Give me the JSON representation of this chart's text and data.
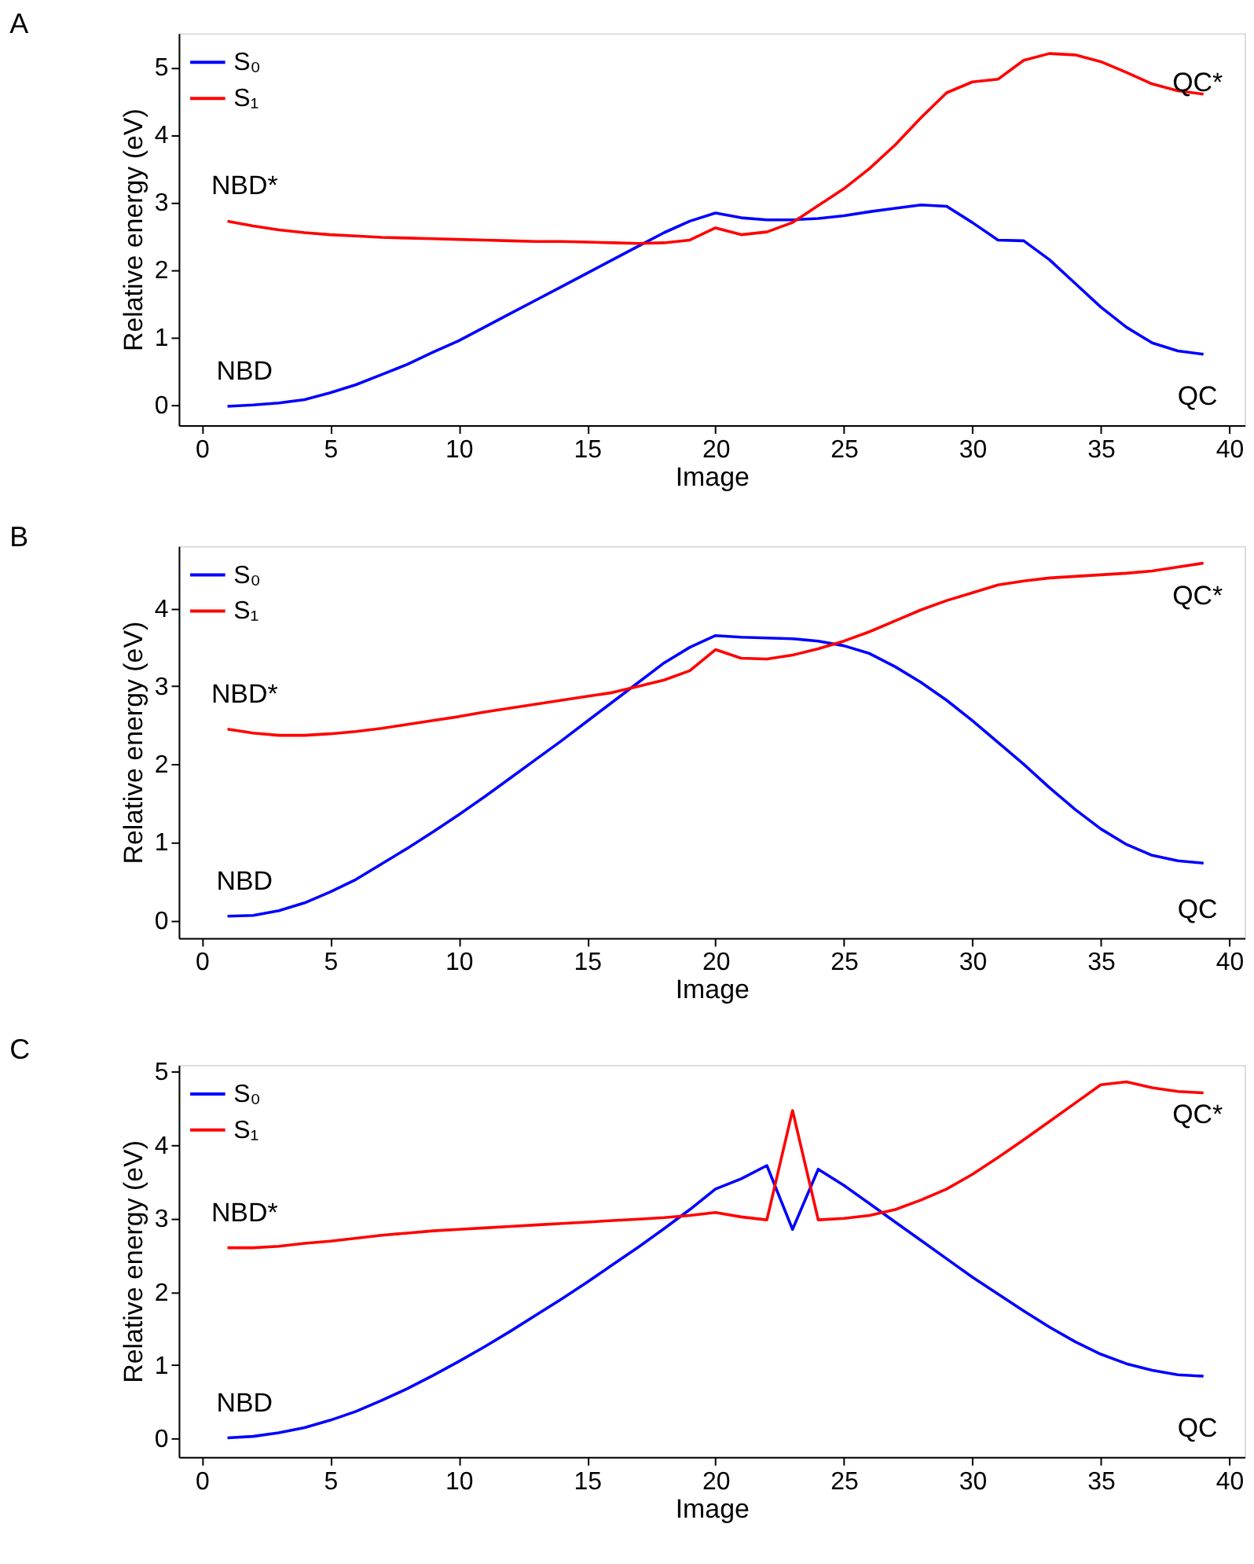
{
  "chart_data": [
    {
      "type": "line",
      "title": "A",
      "xlabel": "Image",
      "ylabel": "Relative energy (eV)",
      "x": [
        1,
        2,
        3,
        4,
        5,
        6,
        7,
        8,
        9,
        10,
        11,
        12,
        13,
        14,
        15,
        16,
        17,
        18,
        19,
        20,
        21,
        22,
        23,
        24,
        25,
        26,
        27,
        28,
        29,
        30,
        31,
        32,
        33,
        34,
        35,
        36,
        37,
        38,
        39
      ],
      "xlim": [
        -0.9,
        40.6
      ],
      "xticks": [
        0,
        5,
        10,
        15,
        20,
        25,
        30,
        35,
        40
      ],
      "ylim": [
        -0.3,
        5.5
      ],
      "yticks": [
        0,
        1,
        2,
        3,
        4,
        5
      ],
      "grid": false,
      "legend": "top left",
      "marker": "none",
      "line_style": "solid",
      "series": [
        {
          "name": "S₀",
          "color": "#0000ff",
          "values": [
            -0.02,
            0,
            0.03,
            0.08,
            0.18,
            0.3,
            0.45,
            0.6,
            0.78,
            0.95,
            1.15,
            1.35,
            1.55,
            1.75,
            1.95,
            2.15,
            2.35,
            2.55,
            2.72,
            2.84,
            2.77,
            2.74,
            2.74,
            2.76,
            2.8,
            2.86,
            2.91,
            2.96,
            2.94,
            2.7,
            2.44,
            2.43,
            2.15,
            1.8,
            1.45,
            1.15,
            0.92,
            0.8,
            0.75
          ]
        },
        {
          "name": "S₁",
          "color": "#ff0000",
          "values": [
            2.72,
            2.65,
            2.59,
            2.55,
            2.52,
            2.5,
            2.48,
            2.47,
            2.46,
            2.45,
            2.44,
            2.43,
            2.42,
            2.42,
            2.41,
            2.4,
            2.39,
            2.4,
            2.44,
            2.62,
            2.52,
            2.56,
            2.7,
            2.95,
            3.2,
            3.5,
            3.85,
            4.25,
            4.62,
            4.78,
            4.82,
            5.1,
            5.2,
            5.18,
            5.08,
            4.92,
            4.75,
            4.65,
            4.6
          ]
        }
      ],
      "annotations": [
        "NBD*",
        "NBD",
        "QC*",
        "QC"
      ]
    },
    {
      "type": "line",
      "title": "B",
      "xlabel": "Image",
      "ylabel": "Relative energy (eV)",
      "x": [
        1,
        2,
        3,
        4,
        5,
        6,
        7,
        8,
        9,
        10,
        11,
        12,
        13,
        14,
        15,
        16,
        17,
        18,
        19,
        20,
        21,
        22,
        23,
        24,
        25,
        26,
        27,
        28,
        29,
        30,
        31,
        32,
        33,
        34,
        35,
        36,
        37,
        38,
        39
      ],
      "xlim": [
        -0.9,
        40.6
      ],
      "xticks": [
        0,
        5,
        10,
        15,
        20,
        25,
        30,
        35,
        40
      ],
      "ylim": [
        -0.23,
        4.8
      ],
      "yticks": [
        0,
        1,
        2,
        3,
        4
      ],
      "grid": false,
      "legend": "top left",
      "marker": "none",
      "line_style": "solid",
      "series": [
        {
          "name": "S₀",
          "color": "#0000ff",
          "values": [
            0.05,
            0.06,
            0.12,
            0.22,
            0.36,
            0.52,
            0.72,
            0.92,
            1.13,
            1.35,
            1.58,
            1.82,
            2.06,
            2.3,
            2.55,
            2.8,
            3.05,
            3.3,
            3.5,
            3.65,
            3.63,
            3.62,
            3.61,
            3.58,
            3.52,
            3.42,
            3.25,
            3.05,
            2.82,
            2.56,
            2.28,
            2.0,
            1.7,
            1.42,
            1.17,
            0.97,
            0.83,
            0.76,
            0.73
          ]
        },
        {
          "name": "S₁",
          "color": "#ff0000",
          "values": [
            2.45,
            2.4,
            2.37,
            2.37,
            2.39,
            2.42,
            2.46,
            2.51,
            2.56,
            2.61,
            2.67,
            2.72,
            2.77,
            2.82,
            2.87,
            2.92,
            3.0,
            3.08,
            3.2,
            3.47,
            3.36,
            3.35,
            3.4,
            3.48,
            3.58,
            3.7,
            3.84,
            3.98,
            4.1,
            4.2,
            4.3,
            4.35,
            4.39,
            4.41,
            4.43,
            4.45,
            4.48,
            4.53,
            4.58
          ]
        }
      ],
      "annotations": [
        "NBD*",
        "NBD",
        "QC*",
        "QC"
      ]
    },
    {
      "type": "line",
      "title": "C",
      "xlabel": "Image",
      "ylabel": "Relative energy (eV)",
      "x": [
        1,
        2,
        3,
        4,
        5,
        6,
        7,
        8,
        9,
        10,
        11,
        12,
        13,
        14,
        15,
        16,
        17,
        18,
        19,
        20,
        21,
        22,
        23,
        24,
        25,
        26,
        27,
        28,
        29,
        30,
        31,
        32,
        33,
        34,
        35,
        36,
        37,
        38,
        39
      ],
      "xlim": [
        -0.9,
        40.6
      ],
      "xticks": [
        0,
        5,
        10,
        15,
        20,
        25,
        30,
        35,
        40
      ],
      "ylim": [
        -0.25,
        5.09
      ],
      "yticks": [
        0,
        1,
        2,
        3,
        4,
        5
      ],
      "grid": false,
      "legend": "top left",
      "marker": "none",
      "line_style": "solid",
      "series": [
        {
          "name": "S₀",
          "color": "#0000ff",
          "values": [
            0.01,
            0.03,
            0.08,
            0.15,
            0.25,
            0.37,
            0.52,
            0.68,
            0.86,
            1.05,
            1.25,
            1.46,
            1.68,
            1.9,
            2.13,
            2.37,
            2.61,
            2.86,
            3.12,
            3.4,
            3.54,
            3.72,
            2.85,
            3.67,
            3.45,
            3.2,
            2.95,
            2.7,
            2.45,
            2.2,
            1.97,
            1.74,
            1.52,
            1.32,
            1.15,
            1.02,
            0.93,
            0.87,
            0.85
          ]
        },
        {
          "name": "S₁",
          "color": "#ff0000",
          "values": [
            2.6,
            2.6,
            2.62,
            2.66,
            2.69,
            2.73,
            2.77,
            2.8,
            2.83,
            2.85,
            2.87,
            2.89,
            2.91,
            2.93,
            2.95,
            2.97,
            2.99,
            3.01,
            3.04,
            3.08,
            3.02,
            2.98,
            4.47,
            2.98,
            3.0,
            3.04,
            3.12,
            3.25,
            3.4,
            3.6,
            3.83,
            4.07,
            4.32,
            4.57,
            4.82,
            4.86,
            4.78,
            4.73,
            4.71
          ]
        }
      ],
      "annotations": [
        "NBD*",
        "NBD",
        "QC*",
        "QC"
      ]
    }
  ]
}
